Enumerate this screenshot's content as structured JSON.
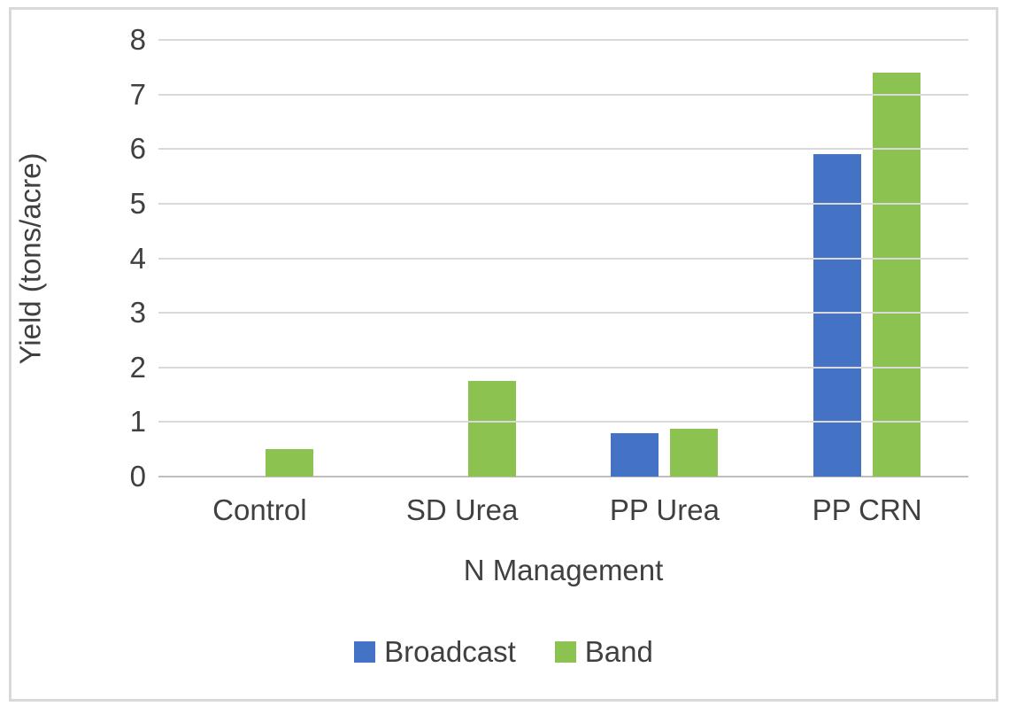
{
  "chart_data": {
    "type": "bar",
    "title": "",
    "categories": [
      "Control",
      "SD Urea",
      "PP Urea",
      "PP CRN"
    ],
    "series": [
      {
        "name": "Broadcast",
        "color": "#4472C4",
        "values": [
          0,
          0,
          0.8,
          5.9
        ]
      },
      {
        "name": "Band",
        "color": "#8CC350",
        "values": [
          0.5,
          1.75,
          0.87,
          7.4
        ]
      }
    ],
    "xlabel": "N Management",
    "ylabel": "Yield (tons/acre)",
    "ylim": [
      0,
      8
    ],
    "y_ticks": [
      0,
      1,
      2,
      3,
      4,
      5,
      6,
      7,
      8
    ],
    "grid": true,
    "legend_position": "bottom-center",
    "colors": {
      "text": "#404040",
      "gridline": "#D9D9D9",
      "axis_line": "#BFBFBF",
      "frame_border": "#D9D9D9"
    }
  }
}
